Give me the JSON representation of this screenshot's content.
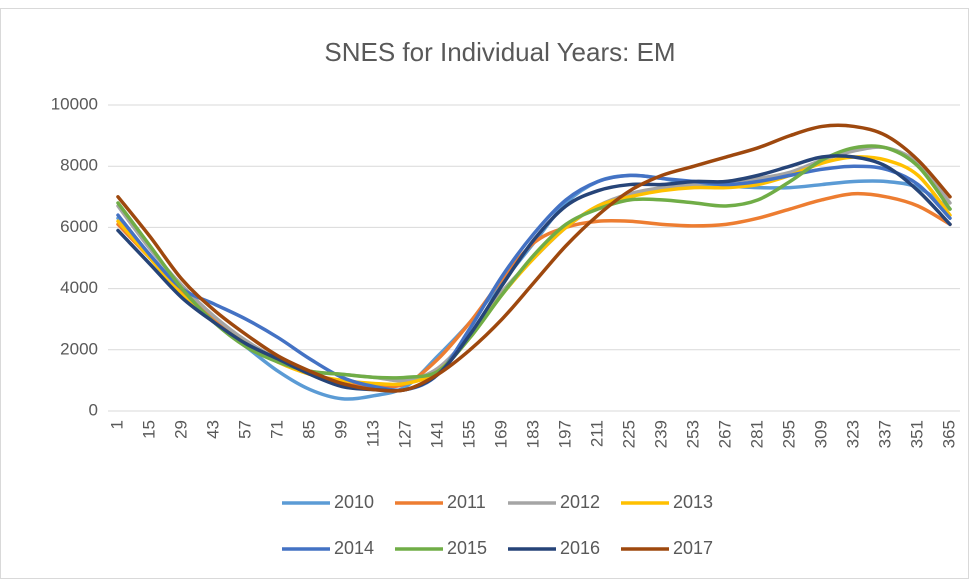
{
  "chart_data": {
    "type": "line",
    "title": "SNES for Individual Years: EM",
    "categories": [
      "1",
      "15",
      "29",
      "43",
      "57",
      "71",
      "85",
      "99",
      "113",
      "127",
      "141",
      "155",
      "169",
      "183",
      "197",
      "211",
      "225",
      "239",
      "253",
      "267",
      "281",
      "295",
      "309",
      "323",
      "337",
      "351",
      "365"
    ],
    "ylim": [
      0,
      10000
    ],
    "yticks": [
      0,
      2000,
      4000,
      6000,
      8000,
      10000
    ],
    "grid": true,
    "legend": "bottom",
    "series": [
      {
        "name": "2010",
        "color": "#5b9bd5",
        "values": [
          6300,
          5000,
          3900,
          2900,
          2100,
          1300,
          700,
          400,
          500,
          800,
          1800,
          2900,
          4200,
          5500,
          6800,
          7500,
          7700,
          7600,
          7400,
          7350,
          7300,
          7300,
          7400,
          7500,
          7500,
          7300,
          6600
        ]
      },
      {
        "name": "2011",
        "color": "#ed7d31",
        "values": [
          6100,
          5000,
          3900,
          3000,
          2200,
          1600,
          1200,
          900,
          800,
          900,
          1700,
          2900,
          4300,
          5500,
          6000,
          6200,
          6200,
          6100,
          6050,
          6100,
          6300,
          6600,
          6900,
          7100,
          7000,
          6700,
          6100
        ]
      },
      {
        "name": "2012",
        "color": "#a5a5a5",
        "values": [
          6700,
          5300,
          4100,
          3100,
          2300,
          1700,
          1300,
          1200,
          1100,
          1000,
          1400,
          2500,
          3900,
          5000,
          6000,
          6700,
          7100,
          7300,
          7400,
          7500,
          7600,
          7800,
          8200,
          8500,
          8600,
          8100,
          6800
        ]
      },
      {
        "name": "2013",
        "color": "#ffc000",
        "values": [
          6200,
          5000,
          3800,
          2900,
          2200,
          1600,
          1200,
          1000,
          900,
          900,
          1300,
          2400,
          3800,
          5000,
          6000,
          6700,
          7000,
          7200,
          7300,
          7300,
          7400,
          7700,
          8100,
          8300,
          8200,
          7700,
          6400
        ]
      },
      {
        "name": "2014",
        "color": "#4472c4",
        "values": [
          6400,
          5100,
          4000,
          3500,
          3000,
          2400,
          1700,
          1100,
          800,
          700,
          1200,
          2700,
          4400,
          5800,
          6900,
          7500,
          7700,
          7600,
          7500,
          7400,
          7500,
          7700,
          7900,
          8000,
          7900,
          7400,
          6300
        ]
      },
      {
        "name": "2015",
        "color": "#70ad47",
        "values": [
          6800,
          5400,
          4000,
          2900,
          2100,
          1600,
          1300,
          1200,
          1100,
          1100,
          1300,
          2400,
          3800,
          5100,
          6100,
          6600,
          6900,
          6900,
          6800,
          6700,
          6900,
          7500,
          8200,
          8600,
          8600,
          8000,
          6600
        ]
      },
      {
        "name": "2016",
        "color": "#264478",
        "values": [
          5900,
          4800,
          3700,
          2900,
          2200,
          1700,
          1200,
          800,
          700,
          700,
          1200,
          2500,
          4100,
          5600,
          6700,
          7200,
          7400,
          7400,
          7500,
          7500,
          7700,
          8000,
          8300,
          8300,
          8000,
          7200,
          6100
        ]
      },
      {
        "name": "2017",
        "color": "#9e480e",
        "values": [
          7000,
          5700,
          4300,
          3300,
          2500,
          1800,
          1300,
          900,
          700,
          700,
          1200,
          2000,
          3000,
          4200,
          5400,
          6400,
          7200,
          7700,
          8000,
          8300,
          8600,
          9000,
          9300,
          9300,
          9000,
          8200,
          7000
        ]
      }
    ]
  }
}
